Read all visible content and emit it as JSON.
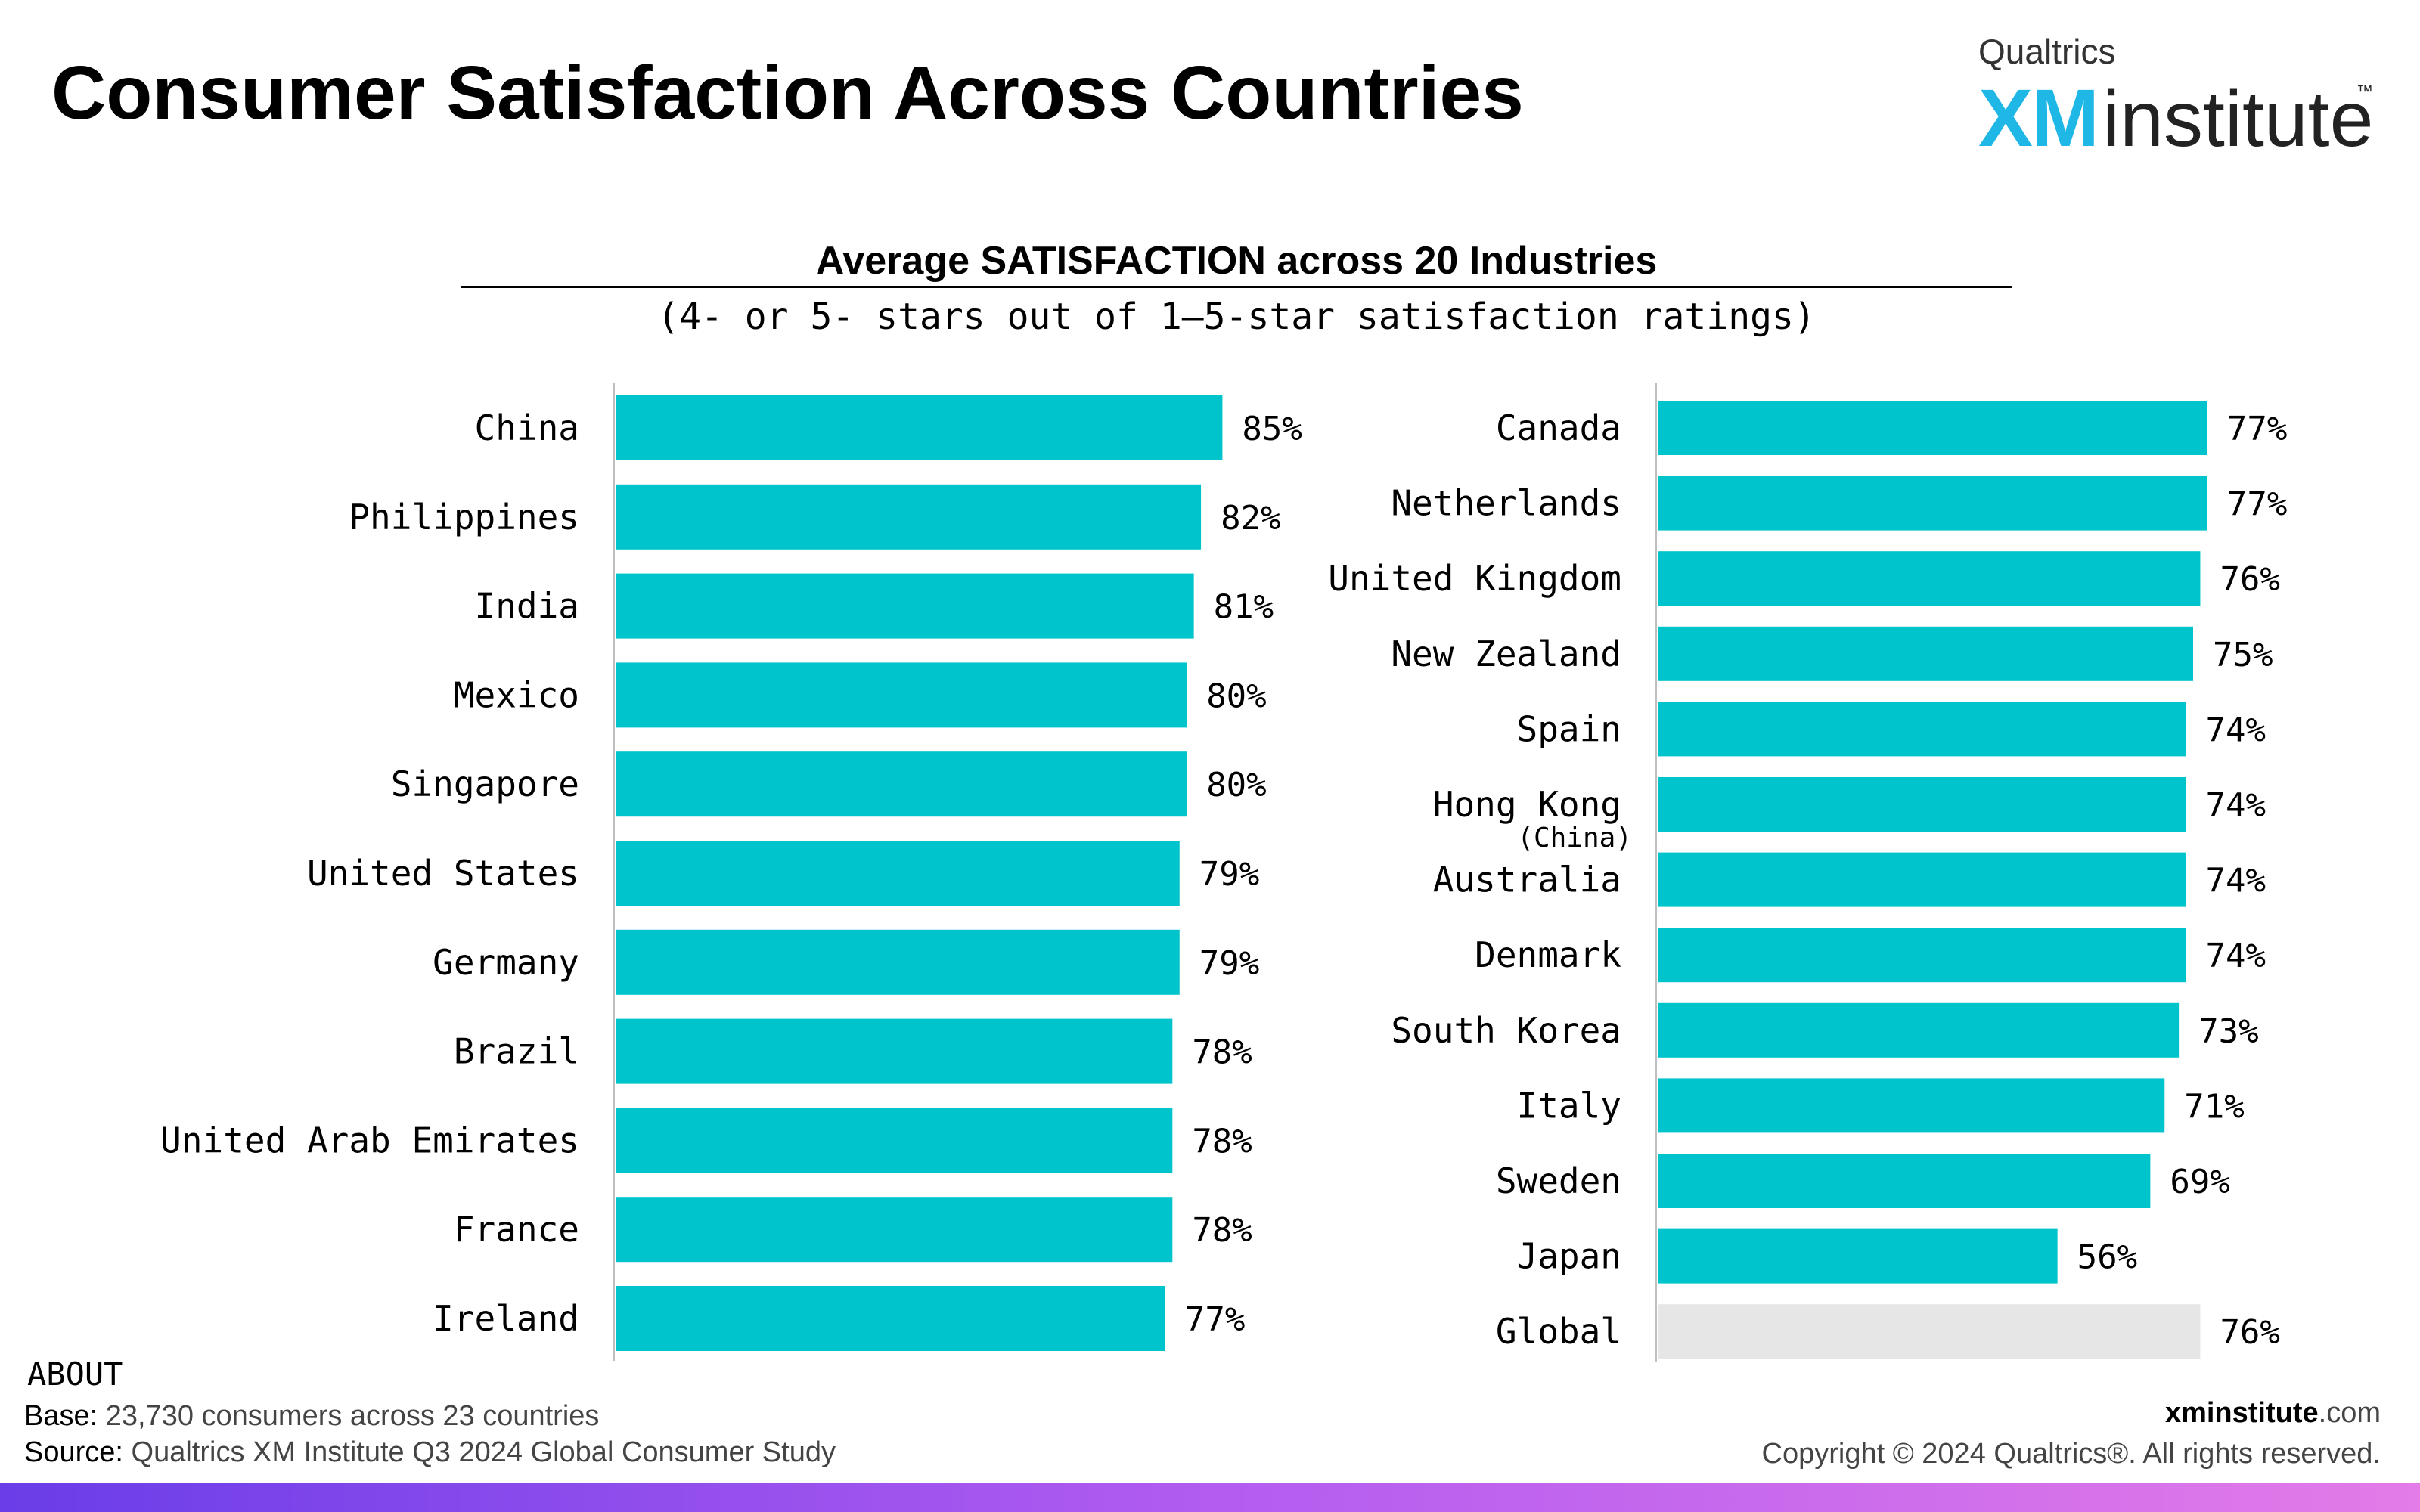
{
  "header": {
    "title": "Consumer Satisfaction Across Countries",
    "logo": {
      "brand": "Qualtrics",
      "xm": "XM",
      "institute": "institute",
      "tm": "™"
    }
  },
  "chart_data": {
    "type": "bar",
    "orientation": "horizontal",
    "title": "Average SATISFACTION across 20 Industries",
    "subtitle": "(4- or 5- stars out of 1—5-star satisfaction ratings)",
    "value_suffix": "%",
    "xlim": [
      0,
      100
    ],
    "bar_color": "#00c4cc",
    "highlight_color": "#e6e6e6",
    "panels": [
      {
        "categories": [
          {
            "label": "China",
            "value": 85
          },
          {
            "label": "Philippines",
            "value": 82
          },
          {
            "label": "India",
            "value": 81
          },
          {
            "label": "Mexico",
            "value": 80
          },
          {
            "label": "Singapore",
            "value": 80
          },
          {
            "label": "United States",
            "value": 79
          },
          {
            "label": "Germany",
            "value": 79
          },
          {
            "label": "Brazil",
            "value": 78
          },
          {
            "label": "United Arab Emirates",
            "value": 78
          },
          {
            "label": "France",
            "value": 78
          },
          {
            "label": "Ireland",
            "value": 77
          }
        ]
      },
      {
        "categories": [
          {
            "label": "Canada",
            "value": 77
          },
          {
            "label": "Netherlands",
            "value": 77
          },
          {
            "label": "United Kingdom",
            "value": 76
          },
          {
            "label": "New Zealand",
            "value": 75
          },
          {
            "label": "Spain",
            "value": 74
          },
          {
            "label": "Hong Kong",
            "sub": "(China)",
            "value": 74
          },
          {
            "label": "Australia",
            "value": 74
          },
          {
            "label": "Denmark",
            "value": 74
          },
          {
            "label": "South Korea",
            "value": 73
          },
          {
            "label": "Italy",
            "value": 71
          },
          {
            "label": "Sweden",
            "value": 69
          },
          {
            "label": "Japan",
            "value": 56
          },
          {
            "label": "Global",
            "value": 76,
            "highlight": true
          }
        ]
      }
    ]
  },
  "footer": {
    "about_label": "ABOUT",
    "base_key": "Base:",
    "base_text": "23,730 consumers across 23 countries",
    "source_key": "Source:",
    "source_text": "Qualtrics XM Institute Q3 2024 Global Consumer Study",
    "site_bold": "xminstitute",
    "site_rest": ".com",
    "copyright": "Copyright © 2024 Qualtrics®. All rights reserved."
  }
}
